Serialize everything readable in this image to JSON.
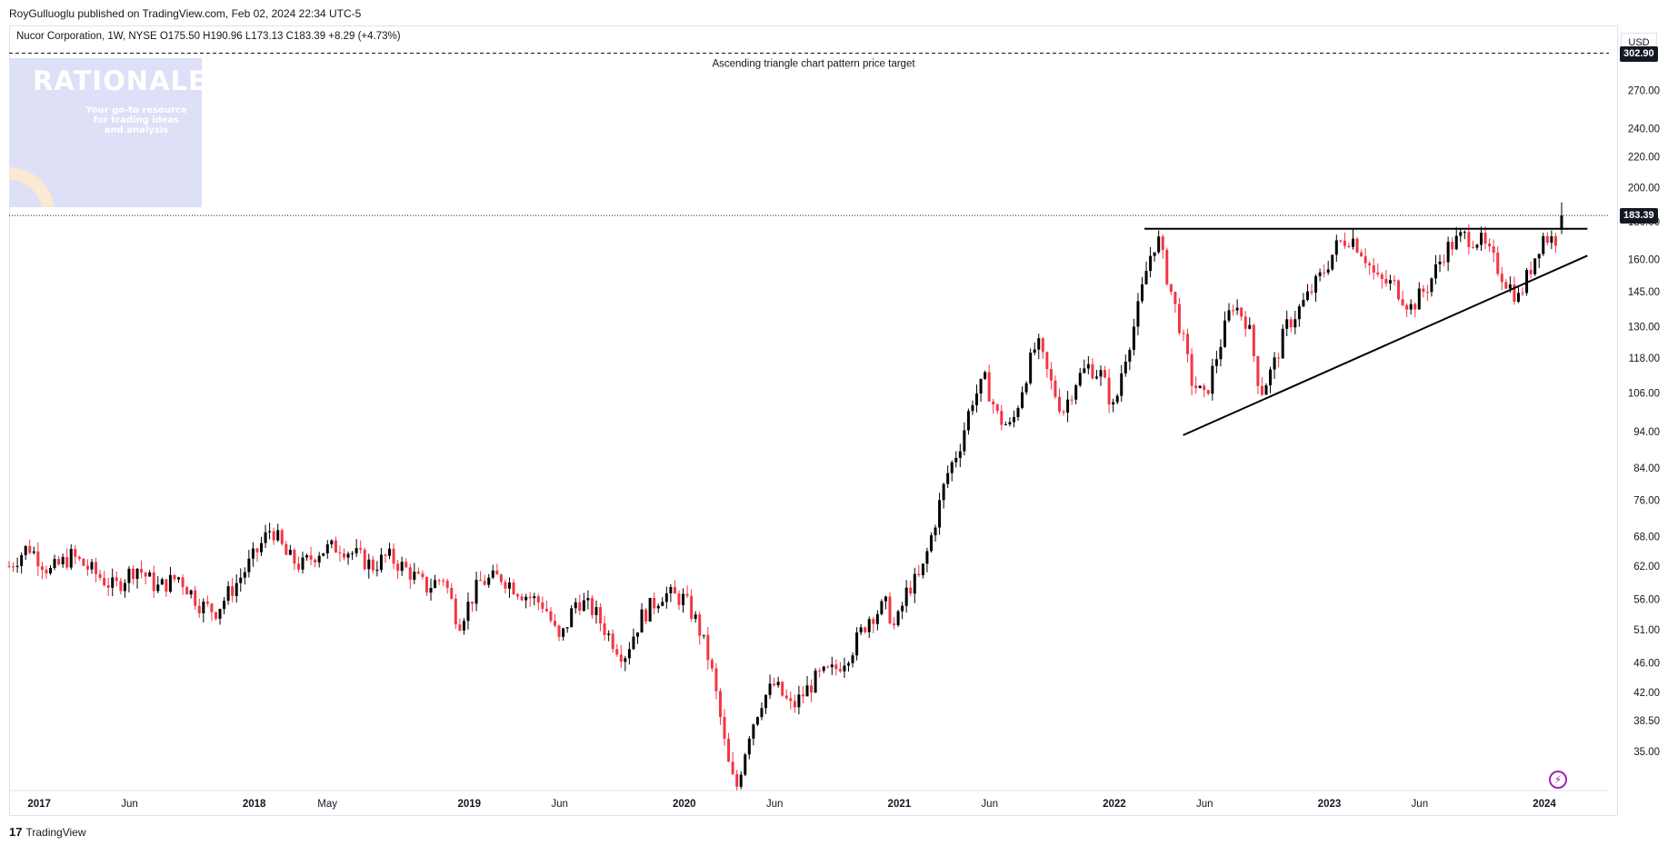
{
  "header": {
    "published": "RoyGulluoglu published on TradingView.com, Feb 02, 2024 22:34 UTC-5"
  },
  "legend": {
    "text": "Nucor Corporation, 1W, NYSE  O175.50  H190.96  L173.13  C183.39  +8.29 (+4.73%)"
  },
  "currency": "USD",
  "logo": {
    "title": "RATIONALE",
    "tagline_1": "Your go-to resource",
    "tagline_2": "for trading ideas",
    "tagline_3": "and analysis"
  },
  "annotation": "Ascending triangle chart pattern price target",
  "price_tags": {
    "target": "302.90",
    "last": "183.39"
  },
  "footer": {
    "brand": "TradingView",
    "logo_glyph": "17"
  },
  "bolt_icon": "⚡",
  "colors": {
    "up": "#000000",
    "down": "#f23645",
    "accent_logo_bg": "#dde0f6"
  },
  "chart_data": {
    "type": "candlestick",
    "title": "",
    "symbol": "Nucor Corporation, 1W, NYSE",
    "scale": "log",
    "y_ticks": [
      35,
      38.5,
      42,
      46,
      51,
      56,
      62,
      68,
      76,
      84,
      94,
      106,
      118,
      130,
      145,
      160,
      180,
      200,
      220,
      240,
      270
    ],
    "y_tick_labels": [
      "35.00",
      "38.50",
      "42.00",
      "46.00",
      "51.00",
      "56.00",
      "62.00",
      "68.00",
      "76.00",
      "84.00",
      "94.00",
      "106.00",
      "118.00",
      "130.00",
      "145.00",
      "160.00",
      "180.00",
      "200.00",
      "220.00",
      "240.00",
      "270.00"
    ],
    "x_tick_labels": [
      {
        "t": 2017.0,
        "label": "2017",
        "bold": true
      },
      {
        "t": 2017.42,
        "label": "Jun",
        "bold": false
      },
      {
        "t": 2018.0,
        "label": "2018",
        "bold": true
      },
      {
        "t": 2018.34,
        "label": "May",
        "bold": false
      },
      {
        "t": 2019.0,
        "label": "2019",
        "bold": true
      },
      {
        "t": 2019.42,
        "label": "Jun",
        "bold": false
      },
      {
        "t": 2020.0,
        "label": "2020",
        "bold": true
      },
      {
        "t": 2020.42,
        "label": "Jun",
        "bold": false
      },
      {
        "t": 2021.0,
        "label": "2021",
        "bold": true
      },
      {
        "t": 2021.42,
        "label": "Jun",
        "bold": false
      },
      {
        "t": 2022.0,
        "label": "2022",
        "bold": true
      },
      {
        "t": 2022.42,
        "label": "Jun",
        "bold": false
      },
      {
        "t": 2023.0,
        "label": "2023",
        "bold": true
      },
      {
        "t": 2023.42,
        "label": "Jun",
        "bold": false
      },
      {
        "t": 2024.0,
        "label": "2024",
        "bold": true
      }
    ],
    "price_line_close": 183.39,
    "target_price": 302.9,
    "resistance": {
      "t0": 2022.14,
      "t1": 2024.2,
      "price": 176
    },
    "support": {
      "t0": 2022.32,
      "p0": 93,
      "t1": 2024.2,
      "p1": 162
    },
    "close_path": [
      [
        2016.86,
        62
      ],
      [
        2016.95,
        66
      ],
      [
        2017.05,
        61
      ],
      [
        2017.15,
        64
      ],
      [
        2017.25,
        61
      ],
      [
        2017.35,
        58
      ],
      [
        2017.45,
        62
      ],
      [
        2017.55,
        58
      ],
      [
        2017.65,
        60
      ],
      [
        2017.75,
        55
      ],
      [
        2017.82,
        54
      ],
      [
        2017.92,
        59
      ],
      [
        2018.0,
        64
      ],
      [
        2018.08,
        70
      ],
      [
        2018.15,
        64
      ],
      [
        2018.22,
        62
      ],
      [
        2018.3,
        65
      ],
      [
        2018.4,
        66
      ],
      [
        2018.48,
        64
      ],
      [
        2018.55,
        62
      ],
      [
        2018.62,
        64
      ],
      [
        2018.72,
        61
      ],
      [
        2018.8,
        58
      ],
      [
        2018.88,
        60
      ],
      [
        2018.95,
        52
      ],
      [
        2019.05,
        59
      ],
      [
        2019.15,
        60
      ],
      [
        2019.25,
        57
      ],
      [
        2019.35,
        55
      ],
      [
        2019.42,
        49
      ],
      [
        2019.5,
        56
      ],
      [
        2019.58,
        54
      ],
      [
        2019.65,
        50
      ],
      [
        2019.72,
        47
      ],
      [
        2019.8,
        53
      ],
      [
        2019.9,
        57
      ],
      [
        2020.0,
        56
      ],
      [
        2020.06,
        52
      ],
      [
        2020.12,
        46
      ],
      [
        2020.16,
        40
      ],
      [
        2020.2,
        34
      ],
      [
        2020.24,
        31
      ],
      [
        2020.3,
        37
      ],
      [
        2020.36,
        41
      ],
      [
        2020.42,
        43
      ],
      [
        2020.5,
        40
      ],
      [
        2020.56,
        42
      ],
      [
        2020.62,
        44
      ],
      [
        2020.7,
        45
      ],
      [
        2020.78,
        48
      ],
      [
        2020.86,
        53
      ],
      [
        2020.94,
        55
      ],
      [
        2020.98,
        51
      ],
      [
        2021.04,
        58
      ],
      [
        2021.1,
        60
      ],
      [
        2021.16,
        70
      ],
      [
        2021.22,
        82
      ],
      [
        2021.28,
        90
      ],
      [
        2021.34,
        104
      ],
      [
        2021.4,
        110
      ],
      [
        2021.46,
        98
      ],
      [
        2021.52,
        95
      ],
      [
        2021.58,
        110
      ],
      [
        2021.64,
        124
      ],
      [
        2021.7,
        110
      ],
      [
        2021.76,
        100
      ],
      [
        2021.82,
        110
      ],
      [
        2021.88,
        115
      ],
      [
        2021.94,
        112
      ],
      [
        2022.0,
        100
      ],
      [
        2022.04,
        116
      ],
      [
        2022.1,
        133
      ],
      [
        2022.16,
        160
      ],
      [
        2022.2,
        172
      ],
      [
        2022.25,
        150
      ],
      [
        2022.3,
        132
      ],
      [
        2022.36,
        110
      ],
      [
        2022.42,
        104
      ],
      [
        2022.48,
        120
      ],
      [
        2022.55,
        140
      ],
      [
        2022.62,
        132
      ],
      [
        2022.68,
        106
      ],
      [
        2022.74,
        115
      ],
      [
        2022.8,
        130
      ],
      [
        2022.88,
        140
      ],
      [
        2022.96,
        152
      ],
      [
        2023.04,
        168
      ],
      [
        2023.1,
        172
      ],
      [
        2023.16,
        163
      ],
      [
        2023.22,
        150
      ],
      [
        2023.3,
        148
      ],
      [
        2023.38,
        138
      ],
      [
        2023.46,
        148
      ],
      [
        2023.54,
        165
      ],
      [
        2023.62,
        172
      ],
      [
        2023.7,
        170
      ],
      [
        2023.76,
        160
      ],
      [
        2023.82,
        150
      ],
      [
        2023.88,
        142
      ],
      [
        2023.94,
        157
      ],
      [
        2023.99,
        172
      ],
      [
        2024.05,
        170
      ],
      [
        2024.08,
        183.39
      ]
    ],
    "last_candle": {
      "o": 175.5,
      "h": 190.96,
      "l": 173.13,
      "c": 183.39
    }
  }
}
